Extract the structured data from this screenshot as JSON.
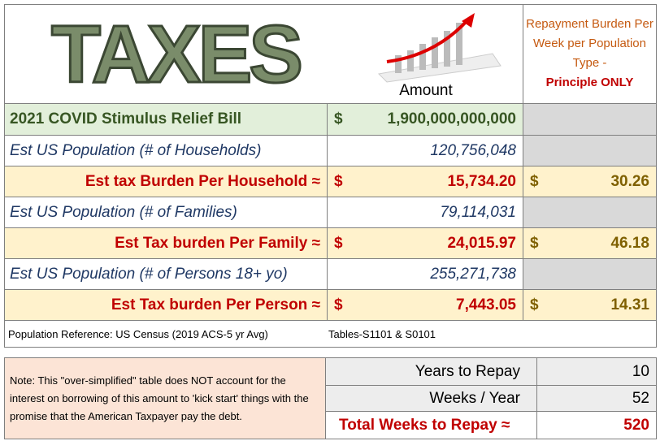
{
  "header": {
    "image_text": "TAXES",
    "amount_label": "Amount",
    "burden_title": "Repayment Burden Per Week per Population Type -",
    "burden_emphasis": "Principle ONLY"
  },
  "table": {
    "rows": [
      {
        "label": "2021 COVID Stimulus Relief Bill",
        "currency": "$",
        "amount": "1,900,000,000,000"
      },
      {
        "label": "Est US Population (# of Households)",
        "amount": "120,756,048"
      },
      {
        "label": "Est tax Burden Per Household ≈",
        "currency": "$",
        "amount": "15,734.20",
        "week_currency": "$",
        "per_week": "30.26"
      },
      {
        "label": "Est US Population (# of Families)",
        "amount": "79,114,031"
      },
      {
        "label": "Est Tax burden Per Family ≈",
        "currency": "$",
        "amount": "24,015.97",
        "week_currency": "$",
        "per_week": "46.18"
      },
      {
        "label": "Est US Population (# of Persons 18+ yo)",
        "amount": "255,271,738"
      },
      {
        "label": "Est Tax burden Per Person ≈",
        "currency": "$",
        "amount": "7,443.05",
        "week_currency": "$",
        "per_week": "14.31"
      }
    ],
    "reference": "Population Reference: US Census (2019 ACS-5 yr Avg)",
    "reference_tables": "Tables-S1101 & S0101"
  },
  "note": "Note: This \"over-simplified\" table does NOT account for the interest on borrowing of this amount to 'kick start' things with the promise that the American Taxpayer pay the debt.",
  "repay": {
    "rows": [
      {
        "label": "Years to Repay",
        "value": "10"
      },
      {
        "label": "Weeks / Year",
        "value": "52"
      },
      {
        "label": "Total Weeks to Repay ≈",
        "value": "520"
      }
    ]
  }
}
